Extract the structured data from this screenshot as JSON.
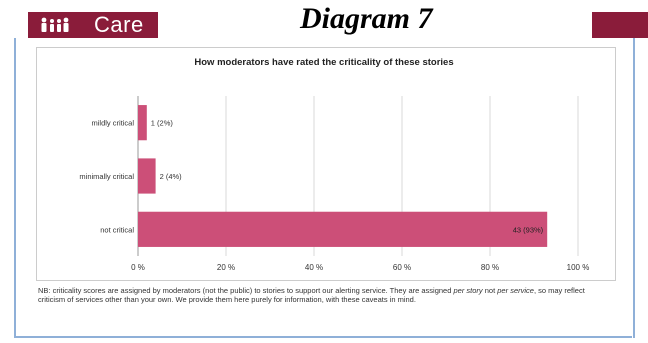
{
  "header": {
    "brand_name": "Care",
    "diagram_label": "Diagram 7",
    "brand_color": "#8a1c3a",
    "logo_icon": "family-icon"
  },
  "chart_data": {
    "type": "bar",
    "orientation": "horizontal",
    "title": "How moderators have rated the criticality of these stories",
    "categories": [
      "mildly critical",
      "minimally critical",
      "not critical"
    ],
    "values": [
      2,
      4,
      93
    ],
    "counts": [
      1,
      2,
      43
    ],
    "data_labels": [
      "1 (2%)",
      "2 (4%)",
      "43 (93%)"
    ],
    "xlim": [
      0,
      100
    ],
    "x_ticks": [
      "0 %",
      "20 %",
      "40 %",
      "60 %",
      "80 %",
      "100 %"
    ],
    "bar_color": "#cc4f78",
    "grid": true
  },
  "note": {
    "part1": "NB: criticality scores are assigned by moderators (not the public) to stories to support our alerting service. They are assigned ",
    "italic1": "per story",
    "part2": " not ",
    "italic2": "per service",
    "part3": ", so may reflect criticism of services other than your own. We provide them here purely for information, with these caveats in mind."
  }
}
